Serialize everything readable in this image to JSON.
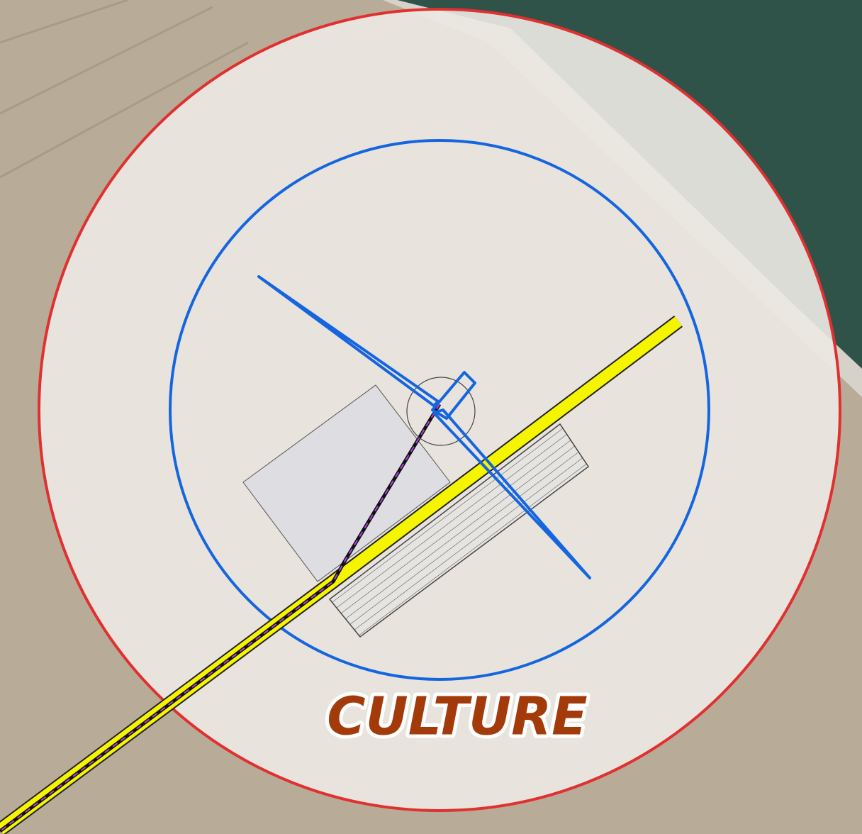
{
  "label": "CULTURE"
}
